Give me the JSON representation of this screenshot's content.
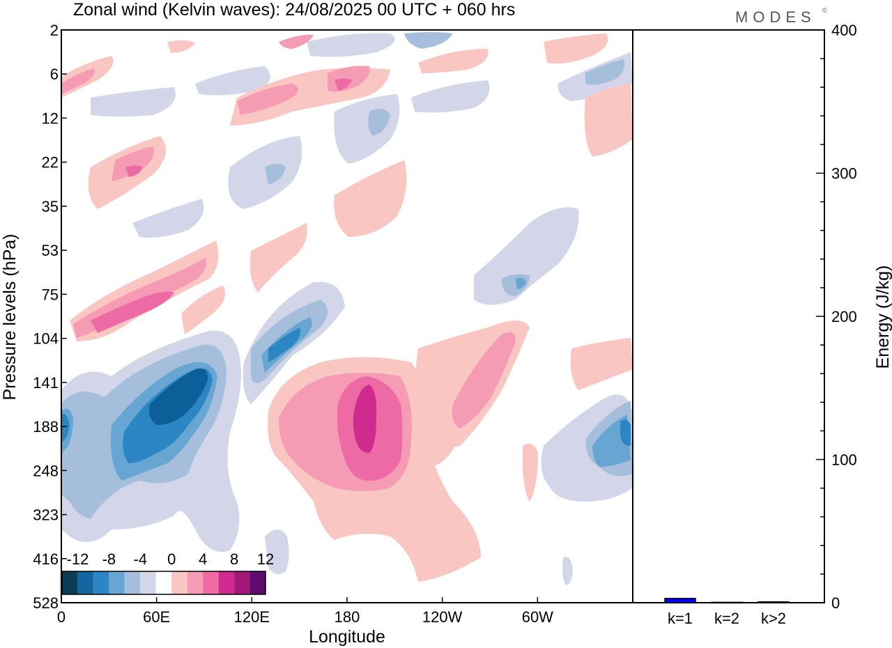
{
  "title": "Zonal wind (Kelvin waves):  24/08/2025  00 UTC  + 060 hrs",
  "brand": "MODES",
  "brand_mark": "©",
  "chart_data": [
    {
      "type": "heatmap",
      "title": "Zonal wind (Kelvin waves):  24/08/2025  00 UTC  + 060 hrs",
      "xlabel": "Longitude",
      "ylabel": "Pressure levels (hPa)",
      "x_ticks": [
        "0",
        "60E",
        "120E",
        "180",
        "120W",
        "60W"
      ],
      "x_tick_values": [
        0,
        60,
        120,
        180,
        240,
        300
      ],
      "xlim": [
        0,
        360
      ],
      "y_ticks": [
        "2",
        "6",
        "12",
        "22",
        "35",
        "53",
        "75",
        "104",
        "141",
        "188",
        "248",
        "323",
        "416",
        "528"
      ],
      "colorbar": {
        "labels": [
          "-12",
          "-8",
          "-4",
          "0",
          "4",
          "8",
          "12"
        ],
        "colors": [
          "#0d3c55",
          "#1565a0",
          "#2b86c3",
          "#67a6d2",
          "#a5bedc",
          "#d3d6e8",
          "#ffffff",
          "#f9c6c2",
          "#f59bb3",
          "#ee6aa4",
          "#cf2a8e",
          "#a3177a",
          "#5e0a6e"
        ]
      },
      "features": [
        {
          "name": "negative-core-west-pacific",
          "lon_center": 70,
          "level_center": "141-188",
          "min_value": -12
        },
        {
          "name": "positive-core-dateline",
          "lon_center": 185,
          "level_center": "188",
          "max_value": 10
        },
        {
          "name": "negative-tilt-120E",
          "lon_center": 130,
          "level_center": "104-141",
          "min_value": -8
        },
        {
          "name": "positive-band-40E",
          "lon_center": 45,
          "level_center": "75",
          "max_value": 6
        }
      ]
    },
    {
      "type": "bar",
      "ylabel": "Energy (J/kg)",
      "categories": [
        "k=1",
        "k=2",
        "k>2"
      ],
      "values": [
        3,
        0.3,
        0.6
      ],
      "ylim": [
        0,
        400
      ],
      "y_ticks": [
        "0",
        "100",
        "200",
        "300",
        "400"
      ],
      "bar_color": "#0000ff"
    }
  ]
}
